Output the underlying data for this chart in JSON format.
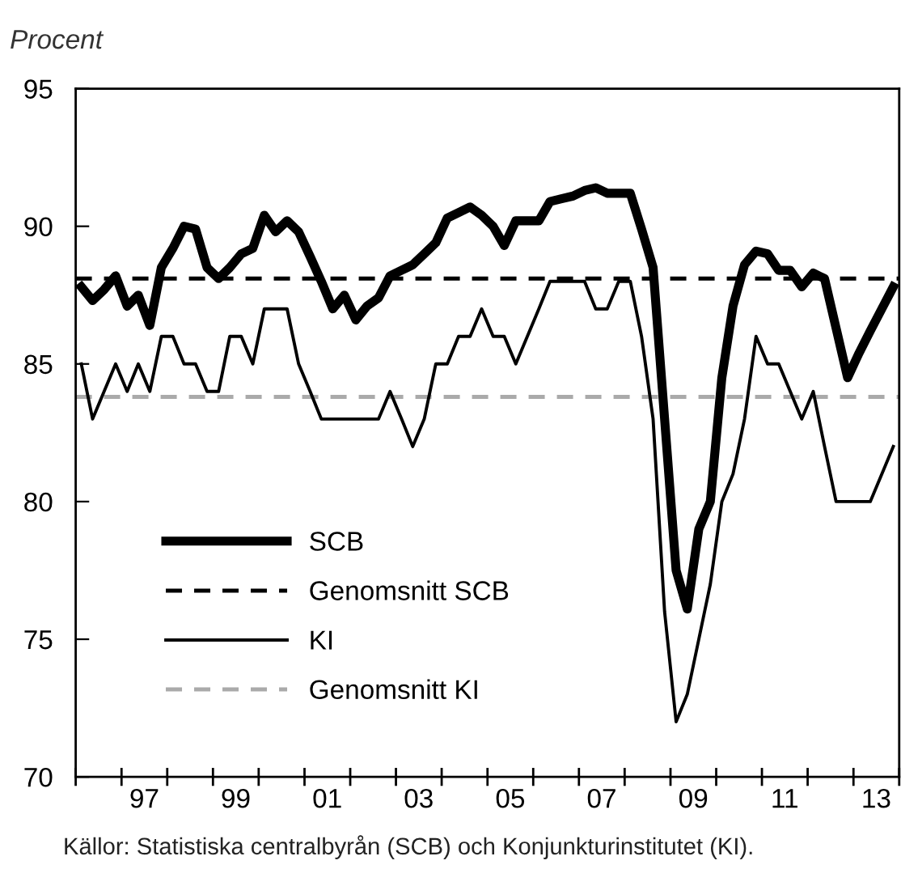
{
  "chart_data": {
    "type": "line",
    "ylabel": "Procent",
    "x": [
      "1996-02-15",
      "1996-05-15",
      "1996-08-15",
      "1996-11-15",
      "1997-02-15",
      "1997-05-15",
      "1997-08-15",
      "1997-11-15",
      "1998-02-15",
      "1998-05-15",
      "1998-08-15",
      "1998-11-15",
      "1999-02-15",
      "1999-05-15",
      "1999-08-15",
      "1999-11-15",
      "2000-02-15",
      "2000-05-15",
      "2000-08-15",
      "2000-11-15",
      "2001-02-15",
      "2001-05-15",
      "2001-08-15",
      "2001-11-15",
      "2002-02-15",
      "2002-05-15",
      "2002-08-15",
      "2002-11-15",
      "2003-02-15",
      "2003-05-15",
      "2003-08-15",
      "2003-11-15",
      "2004-02-15",
      "2004-05-15",
      "2004-08-15",
      "2004-11-15",
      "2005-02-15",
      "2005-05-15",
      "2005-08-15",
      "2005-11-15",
      "2006-02-15",
      "2006-05-15",
      "2006-08-15",
      "2006-11-15",
      "2007-02-15",
      "2007-05-15",
      "2007-08-15",
      "2007-11-15",
      "2008-02-15",
      "2008-05-15",
      "2008-08-15",
      "2008-11-15",
      "2009-02-15",
      "2009-05-15",
      "2009-08-15",
      "2009-11-15",
      "2010-02-15",
      "2010-05-15",
      "2010-08-15",
      "2010-11-15",
      "2011-02-15",
      "2011-05-15",
      "2011-08-15",
      "2011-11-15",
      "2012-02-15",
      "2012-05-15",
      "2012-08-15",
      "2012-11-15",
      "2013-02-15",
      "2013-05-15",
      "2013-08-15",
      "2013-11-15"
    ],
    "series": [
      {
        "name": "SCB",
        "color": "#000000",
        "values": [
          87.8,
          87.3,
          87.7,
          88.2,
          87.1,
          87.5,
          86.4,
          88.5,
          89.2,
          90.0,
          89.9,
          88.5,
          88.1,
          88.5,
          89.0,
          89.2,
          90.4,
          89.8,
          90.2,
          89.8,
          88.9,
          88.0,
          87.0,
          87.5,
          86.6,
          87.1,
          87.4,
          88.2,
          88.4,
          88.6,
          89.0,
          89.4,
          90.3,
          90.5,
          90.7,
          90.4,
          90.0,
          89.3,
          90.2,
          90.2,
          90.2,
          90.9,
          91.0,
          91.1,
          91.3,
          91.4,
          91.2,
          91.2,
          91.2,
          89.9,
          88.5,
          83.0,
          77.5,
          76.1,
          79.0,
          80.0,
          84.5,
          87.1,
          88.6,
          89.1,
          89.0,
          88.4,
          88.4,
          87.8,
          88.3,
          88.1,
          86.3,
          84.5,
          85.4,
          86.2,
          87.0,
          87.8
        ]
      },
      {
        "name": "KI",
        "color": "#000000",
        "values": [
          85,
          83,
          84,
          85,
          84,
          85,
          84,
          86,
          86,
          85,
          85,
          84,
          84,
          86,
          86,
          85,
          87,
          87,
          87,
          85,
          84,
          83,
          83,
          83,
          83,
          83,
          83,
          84,
          83,
          82,
          83,
          85,
          85,
          86,
          86,
          87,
          86,
          86,
          85,
          86,
          87,
          88,
          88,
          88,
          88,
          87,
          87,
          88,
          88,
          86,
          83,
          76,
          72,
          73,
          75,
          77,
          80,
          81,
          83,
          86,
          85,
          85,
          84,
          83,
          84,
          82,
          80,
          80,
          80,
          80,
          81,
          82
        ]
      }
    ],
    "ref_lines": [
      {
        "axis": "y",
        "value": 88.1,
        "label": "Genomsnitt SCB",
        "color": "#000000",
        "line_style": "dashed"
      },
      {
        "axis": "y",
        "value": 83.8,
        "label": "Genomsnitt KI",
        "color": "#aaaaaa",
        "line_style": "dashed"
      }
    ],
    "xlim": [
      "1996-01-01",
      "2014-01-01"
    ],
    "xticks": [
      {
        "value": "1996-01-01",
        "label": null
      },
      {
        "value": "1997-01-01",
        "label": null
      },
      {
        "value": "1998-01-01",
        "label": null
      },
      {
        "value": "1999-01-01",
        "label": null
      },
      {
        "value": "2000-01-01",
        "label": null
      },
      {
        "value": "2001-01-01",
        "label": null
      },
      {
        "value": "2002-01-01",
        "label": null
      },
      {
        "value": "2003-01-01",
        "label": null
      },
      {
        "value": "2004-01-01",
        "label": null
      },
      {
        "value": "2005-01-01",
        "label": null
      },
      {
        "value": "2006-01-01",
        "label": null
      },
      {
        "value": "2007-01-01",
        "label": null
      },
      {
        "value": "2008-01-01",
        "label": null
      },
      {
        "value": "2009-01-01",
        "label": null
      },
      {
        "value": "2010-01-01",
        "label": null
      },
      {
        "value": "2011-01-01",
        "label": null
      },
      {
        "value": "2012-01-01",
        "label": null
      },
      {
        "value": "2013-01-01",
        "label": null
      },
      {
        "value": "2014-01-01",
        "label": null
      },
      {
        "value": "1997-07-02",
        "label": "97"
      },
      {
        "value": "1999-07-02",
        "label": "99"
      },
      {
        "value": "2001-07-02",
        "label": "01"
      },
      {
        "value": "2003-07-02",
        "label": "03"
      },
      {
        "value": "2005-07-02",
        "label": "05"
      },
      {
        "value": "2007-07-02",
        "label": "07"
      },
      {
        "value": "2009-07-02",
        "label": "09"
      },
      {
        "value": "2011-07-02",
        "label": "11"
      },
      {
        "value": "2013-07-02",
        "label": "13"
      }
    ],
    "ylim": [
      70,
      95
    ],
    "yticks": [
      70,
      75,
      80,
      85,
      90,
      95
    ],
    "grid": false,
    "legend": "bottom left",
    "marker": "none",
    "line_style": "solid",
    "annotations": [
      "Källor: Statistiska centralbyrån (SCB) och Konjunkturinstitutet (KI)."
    ]
  }
}
